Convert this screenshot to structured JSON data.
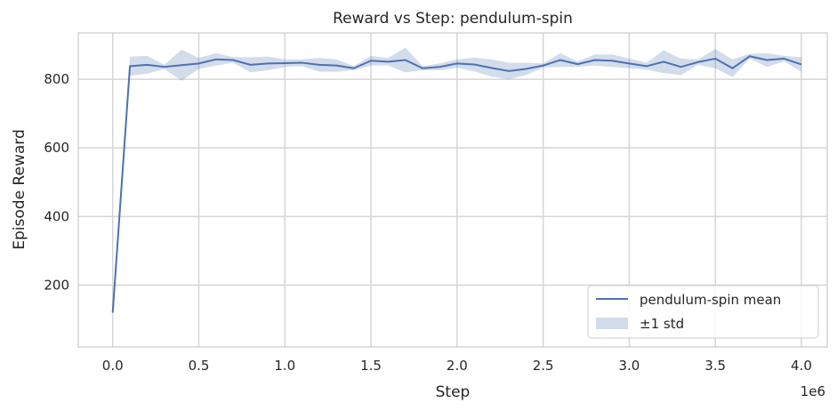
{
  "chart_data": {
    "type": "line",
    "title": "Reward vs Step: pendulum-spin",
    "xlabel": "Step",
    "ylabel": "Episode Reward",
    "x_offset_label": "1e6",
    "xlim": [
      -0.2,
      4.15
    ],
    "ylim": [
      20,
      935
    ],
    "x_ticks": [
      0.0,
      0.5,
      1.0,
      1.5,
      2.0,
      2.5,
      3.0,
      3.5,
      4.0
    ],
    "x_tick_labels": [
      "0.0",
      "0.5",
      "1.0",
      "1.5",
      "2.0",
      "2.5",
      "3.0",
      "3.5",
      "4.0"
    ],
    "y_ticks": [
      200,
      400,
      600,
      800
    ],
    "y_tick_labels": [
      "200",
      "400",
      "600",
      "800"
    ],
    "grid": true,
    "legend_position": "bottom-right",
    "x": [
      0.0,
      0.1,
      0.2,
      0.3,
      0.4,
      0.5,
      0.6,
      0.7,
      0.8,
      0.9,
      1.0,
      1.1,
      1.2,
      1.3,
      1.4,
      1.5,
      1.6,
      1.7,
      1.8,
      1.9,
      2.0,
      2.1,
      2.2,
      2.3,
      2.4,
      2.5,
      2.6,
      2.7,
      2.8,
      2.9,
      3.0,
      3.1,
      3.2,
      3.3,
      3.4,
      3.5,
      3.6,
      3.7,
      3.8,
      3.9,
      4.0
    ],
    "series": [
      {
        "name": "pendulum-spin mean",
        "color": "#4c72b0",
        "values": [
          120,
          838,
          842,
          836,
          841,
          846,
          858,
          856,
          842,
          846,
          847,
          848,
          842,
          840,
          832,
          854,
          851,
          856,
          832,
          836,
          846,
          843,
          833,
          824,
          830,
          840,
          856,
          844,
          856,
          854,
          846,
          838,
          851,
          836,
          850,
          860,
          832,
          867,
          856,
          860,
          843
        ],
        "std_lower": [
          120,
          810,
          816,
          830,
          796,
          830,
          840,
          848,
          820,
          826,
          836,
          838,
          822,
          822,
          826,
          840,
          840,
          820,
          826,
          826,
          834,
          823,
          808,
          800,
          812,
          834,
          836,
          836,
          840,
          836,
          832,
          828,
          818,
          812,
          842,
          832,
          806,
          860,
          836,
          852,
          822
        ],
        "std_upper": [
          120,
          866,
          868,
          842,
          886,
          862,
          876,
          864,
          864,
          866,
          858,
          858,
          862,
          858,
          838,
          868,
          862,
          892,
          838,
          846,
          858,
          863,
          858,
          848,
          848,
          846,
          876,
          852,
          872,
          872,
          860,
          848,
          884,
          860,
          858,
          888,
          858,
          874,
          876,
          868,
          864
        ]
      }
    ],
    "legend": {
      "mean_label": "pendulum-spin mean",
      "band_label": "±1 std",
      "band_color": "#4c72b0"
    }
  }
}
